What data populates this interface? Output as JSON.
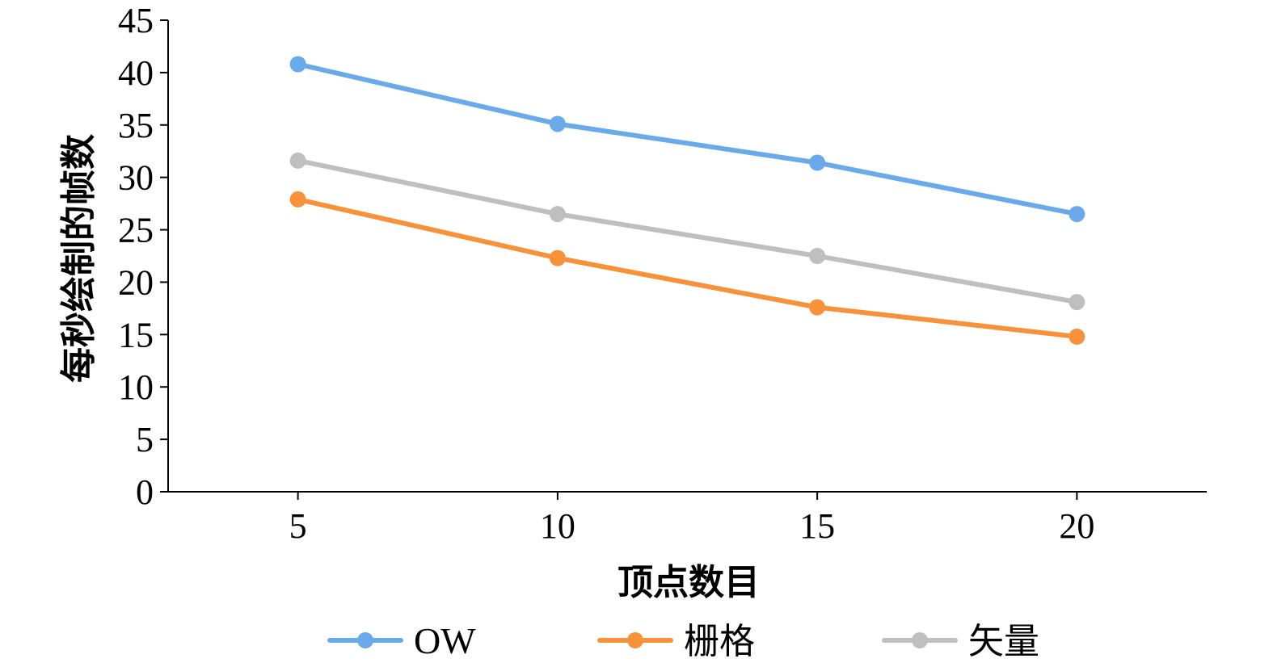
{
  "chart_data": {
    "type": "line",
    "x": [
      5,
      10,
      15,
      20
    ],
    "xlabel": "顶点数目",
    "ylabel": "每秒绘制的帧数",
    "xlim": [
      2.5,
      22.5
    ],
    "ylim": [
      0,
      45
    ],
    "yticks": [
      0,
      5,
      10,
      15,
      20,
      25,
      30,
      35,
      40,
      45
    ],
    "xticks": [
      5,
      10,
      15,
      20
    ],
    "grid": false,
    "legend_position": "bottom",
    "series": [
      {
        "name": "OW",
        "color": "#6aaaea",
        "values": [
          40.8,
          35.1,
          31.4,
          26.5
        ]
      },
      {
        "name": "栅格",
        "color": "#f7923a",
        "values": [
          27.9,
          22.3,
          17.6,
          14.8
        ]
      },
      {
        "name": "矢量",
        "color": "#bfbfbf",
        "values": [
          31.6,
          26.5,
          22.5,
          18.1
        ]
      }
    ]
  }
}
